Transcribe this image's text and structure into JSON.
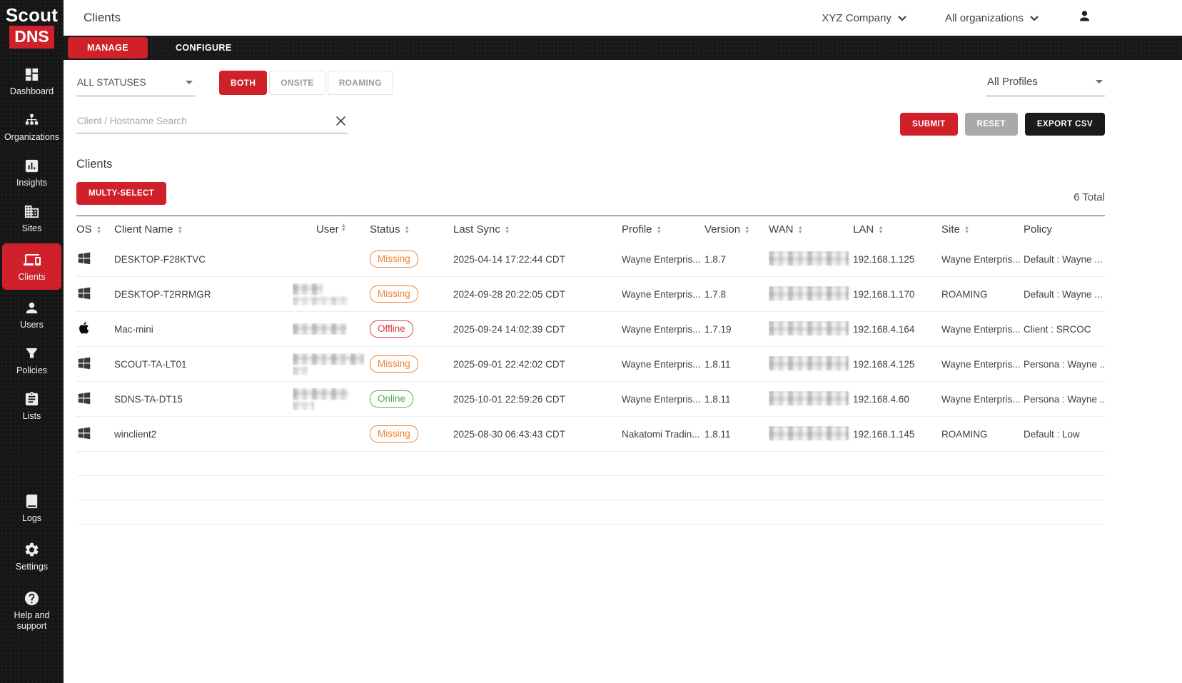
{
  "colors": {
    "brand_red": "#d0212a",
    "status_missing_orange": "#ef8432",
    "status_offline_red": "#dc3c41",
    "status_online_green": "#4caf50"
  },
  "brand": {
    "logo_top": "Scout",
    "logo_bottom": "DNS"
  },
  "topbar": {
    "title": "Clients",
    "company_selector": "XYZ Company",
    "organization_selector": "All organizations"
  },
  "tabs": {
    "manage": "MANAGE",
    "configure": "CONFIGURE"
  },
  "sidebar": {
    "items": [
      {
        "label": "Dashboard"
      },
      {
        "label": "Organizations"
      },
      {
        "label": "Insights"
      },
      {
        "label": "Sites"
      },
      {
        "label": "Clients",
        "active": true
      },
      {
        "label": "Users"
      },
      {
        "label": "Policies"
      },
      {
        "label": "Lists"
      }
    ],
    "footer_items": [
      {
        "label": "Logs"
      },
      {
        "label": "Settings"
      },
      {
        "label": "Help and support"
      }
    ]
  },
  "filters": {
    "status_select": "ALL STATUSES",
    "mode_buttons": [
      "BOTH",
      "ONSITE",
      "ROAMING"
    ],
    "mode_active": "BOTH",
    "profiles_select": "All Profiles",
    "search_placeholder": "Client / Hostname Search",
    "submit_label": "SUBMIT",
    "reset_label": "RESET",
    "export_label": "EXPORT CSV"
  },
  "clients_section": {
    "heading": "Clients",
    "multiselect_label": "MULTY-SELECT",
    "total_label": "6 Total",
    "columns": [
      {
        "label": "OS",
        "sortable": true
      },
      {
        "label": "Client Name",
        "sortable": true
      },
      {
        "label": "User",
        "sortable": true
      },
      {
        "label": "Status",
        "sortable": true
      },
      {
        "label": "Last Sync",
        "sortable": true
      },
      {
        "label": "Profile",
        "sortable": true
      },
      {
        "label": "Version",
        "sortable": true
      },
      {
        "label": "WAN",
        "sortable": true
      },
      {
        "label": "LAN",
        "sortable": true
      },
      {
        "label": "Site",
        "sortable": true
      },
      {
        "label": "Policy",
        "sortable": false
      }
    ],
    "rows": [
      {
        "os": "windows",
        "client_name": "DESKTOP-F28KTVC",
        "user_redaction": [],
        "status": "Missing",
        "last_sync": "2025-04-14 17:22:44 CDT",
        "profile": "Wayne Enterpris...",
        "version": "1.8.7",
        "wan_redacted": true,
        "lan": "192.168.1.125",
        "site": "Wayne Enterpris...",
        "policy": "Default : Wayne ..."
      },
      {
        "os": "windows",
        "client_name": "DESKTOP-T2RRMGR",
        "user_redaction": [
          42,
          78
        ],
        "status": "Missing",
        "last_sync": "2024-09-28 20:22:05 CDT",
        "profile": "Wayne Enterpris...",
        "version": "1.7.8",
        "wan_redacted": true,
        "lan": "192.168.1.170",
        "site": "ROAMING",
        "policy": "Default : Wayne ..."
      },
      {
        "os": "apple",
        "client_name": "Mac-mini",
        "user_redaction": [
          76
        ],
        "status": "Offline",
        "last_sync": "2025-09-24 14:02:39 CDT",
        "profile": "Wayne Enterpris...",
        "version": "1.7.19",
        "wan_redacted": true,
        "lan": "192.168.4.164",
        "site": "Wayne Enterpris...",
        "policy": "Client : SRCOC"
      },
      {
        "os": "windows",
        "client_name": "SCOUT-TA-LT01",
        "user_redaction": [
          100,
          22
        ],
        "status": "Missing",
        "last_sync": "2025-09-01 22:42:02 CDT",
        "profile": "Wayne Enterpris...",
        "version": "1.8.11",
        "wan_redacted": true,
        "lan": "192.168.4.125",
        "site": "Wayne Enterpris...",
        "policy": "Persona : Wayne ..."
      },
      {
        "os": "windows",
        "client_name": "SDNS-TA-DT15",
        "user_redaction": [
          78,
          30
        ],
        "status": "Online",
        "last_sync": "2025-10-01 22:59:26 CDT",
        "profile": "Wayne Enterpris...",
        "version": "1.8.11",
        "wan_redacted": true,
        "lan": "192.168.4.60",
        "site": "Wayne Enterpris...",
        "policy": "Persona : Wayne ..."
      },
      {
        "os": "windows",
        "client_name": "winclient2",
        "user_redaction": [],
        "status": "Missing",
        "last_sync": "2025-08-30 06:43:43 CDT",
        "profile": "Nakatomi Tradin...",
        "version": "1.8.11",
        "wan_redacted": true,
        "lan": "192.168.1.145",
        "site": "ROAMING",
        "policy": "Default : Low"
      }
    ]
  }
}
